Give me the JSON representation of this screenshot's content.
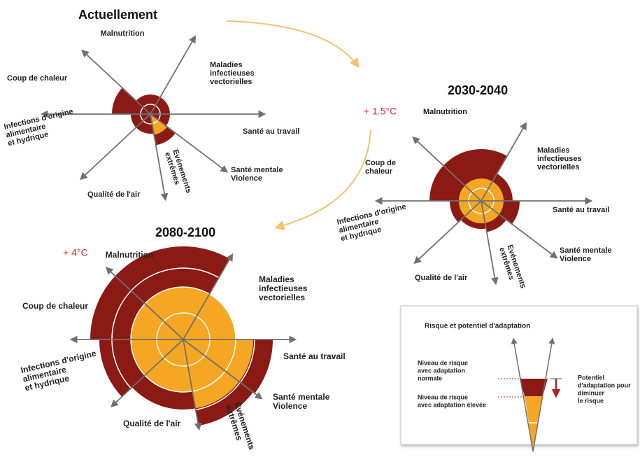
{
  "panels": [
    {
      "title": "Actuellement",
      "labels": [
        [
          "Malnutrition"
        ],
        [
          "Maladies",
          "infectieuses",
          "vectorielles"
        ],
        [
          "Santé au travail"
        ],
        [
          "Santé mentale",
          "Violence"
        ],
        [
          "Evénements",
          "extrêmes"
        ],
        [
          "Qualité de l'air"
        ],
        [
          "Infections d'origine",
          "alimentaire",
          "et hydrique"
        ],
        [
          "Coup de chaleur"
        ]
      ]
    },
    {
      "title": "2030-2040",
      "warming": "+ 1.5°C",
      "labels": [
        [
          "Malnutrition"
        ],
        [
          "Maladies",
          "infectieuses",
          "vectorielles"
        ],
        [
          "Santé au travail"
        ],
        [
          "Santé mentale",
          "Violence"
        ],
        [
          "Evénements",
          "extrêmes"
        ],
        [
          "Qualité de l'air"
        ],
        [
          "Infections d'origine",
          "alimentaire",
          "et hydrique"
        ],
        [
          "Coup de",
          "chaleur"
        ]
      ]
    },
    {
      "title": "2080-2100",
      "warming": "+ 4°C",
      "labels": [
        [
          "Malnutrition"
        ],
        [
          "Maladies",
          "infectieuses",
          "vectorielles"
        ],
        [
          "Santé au travail"
        ],
        [
          "Santé mentale",
          "Violence"
        ],
        [
          "Evénements",
          "extrêmes"
        ],
        [
          "Qualité de l'air"
        ],
        [
          "Infections d'origine",
          "alimentaire",
          "et hydrique"
        ],
        [
          "Coup de chaleur"
        ]
      ]
    }
  ],
  "legend": {
    "title": "Risque et potentiel d'adaptation",
    "normal": [
      "Niveau de risque",
      "avec adaptation",
      "normale"
    ],
    "high": [
      "Niveau de risque",
      "avec adaptation élevée"
    ],
    "potential": [
      "Potentiel",
      "d'adaptation pour",
      "diminuer",
      "le risque"
    ]
  }
}
